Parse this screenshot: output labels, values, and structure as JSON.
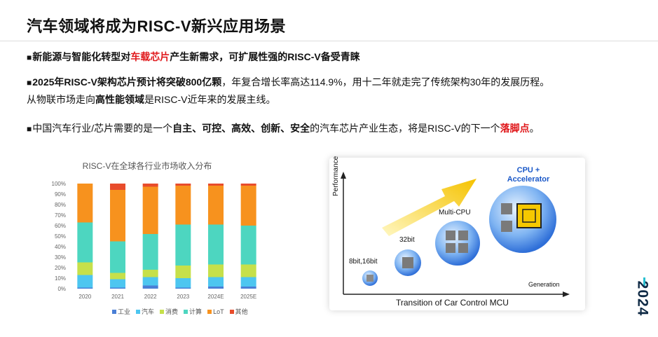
{
  "slide": {
    "title": "汽车领域将成为RISC-V新兴应用场景",
    "bullet1": {
      "marker": "■",
      "part1": "新能源与智能化转型对",
      "part2": "车载芯片",
      "part3": "产生新需求，可扩展性强的RISC-V备受青睐"
    },
    "bullet2": {
      "marker": "■",
      "part1": "2025年RISC-V架构芯片预计将突破800亿颗",
      "part2": "，年复合增长率高达114.9%，用十二年就走完了传统架构30年的发展历程。",
      "line2a": "从物联市场走向",
      "line2b": "高性能领域",
      "line2c": "是RISC-V近年来的发展主线。"
    },
    "bullet3": {
      "marker": "■",
      "part1": "中国汽车行业/芯片需要的是一个",
      "part2": "自主、可控、高效、创新、安全",
      "part3": "的汽车芯片产业生态，将是RISC-V的下一个",
      "part4": "落脚点",
      "part5": "。"
    },
    "year_mark": "2024"
  },
  "chart_data": {
    "type": "bar",
    "title": "RISC-V在全球各行业市场收入分布",
    "stacked": true,
    "categories": [
      "2020",
      "2021",
      "2022",
      "2023",
      "2024E",
      "2025E"
    ],
    "yticks": [
      "0%",
      "10%",
      "20%",
      "30%",
      "40%",
      "50%",
      "60%",
      "70%",
      "80%",
      "90%",
      "100%"
    ],
    "ylim": [
      0,
      100
    ],
    "series": [
      {
        "name": "工业",
        "color": "#4a7fd6",
        "values": [
          1,
          1,
          3,
          1,
          2,
          2
        ]
      },
      {
        "name": "汽车",
        "color": "#4dc6f0",
        "values": [
          12,
          8,
          8,
          9,
          9,
          9
        ]
      },
      {
        "name": "消费",
        "color": "#c6e04a",
        "values": [
          12,
          6,
          7,
          12,
          12,
          12
        ]
      },
      {
        "name": "计算",
        "color": "#4dd6c0",
        "values": [
          38,
          30,
          34,
          39,
          38,
          37
        ]
      },
      {
        "name": "LoT",
        "color": "#f7921e",
        "values": [
          37,
          49,
          45,
          37,
          37,
          38
        ]
      },
      {
        "name": "其他",
        "color": "#e84c2c",
        "values": [
          0,
          6,
          3,
          2,
          2,
          2
        ]
      }
    ],
    "legend_position": "bottom"
  },
  "diagram": {
    "ylabel": "Performance",
    "xlabel": "Generation",
    "caption": "Transition of Car Control MCU",
    "stages": [
      "8bit,16bit",
      "32bit",
      "Multi-CPU"
    ],
    "final_stage_line1": "CPU +",
    "final_stage_line2": "Accelerator"
  }
}
